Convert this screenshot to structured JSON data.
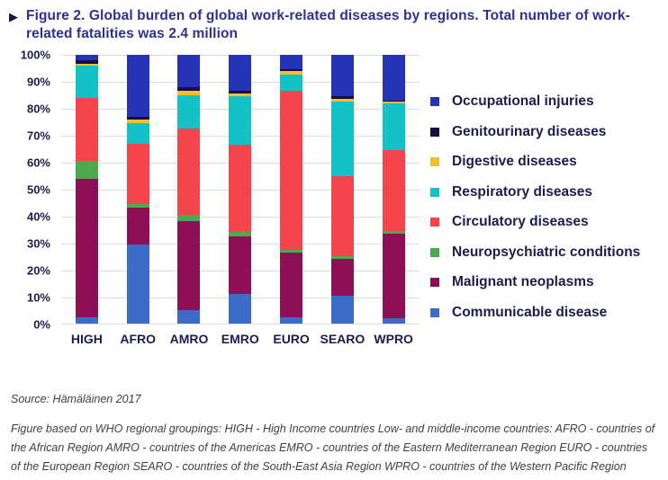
{
  "title": {
    "bullet": "▶",
    "text": "Figure 2. Global burden of global work-related diseases by regions. Total number of work-related fatalities was 2.4 million"
  },
  "chart_data": {
    "type": "bar",
    "subtype": "stacked-percent",
    "title": "Global burden of global work-related diseases by regions",
    "categories": [
      "HIGH",
      "AFRO",
      "AMRO",
      "EMRO",
      "EURO",
      "SEARO",
      "WPRO"
    ],
    "series": [
      {
        "name": "Communicable disease",
        "color": "#3c6cc8",
        "values": [
          2.5,
          29.5,
          5,
          11,
          2.5,
          10.5,
          2
        ]
      },
      {
        "name": "Malignant neoplasms",
        "color": "#8d1056",
        "values": [
          51.5,
          13.5,
          33,
          21.5,
          24,
          13.5,
          31.5
        ]
      },
      {
        "name": "Neuropsychiatric conditions",
        "color": "#4ba94e",
        "values": [
          6.5,
          1.5,
          2.5,
          1.5,
          1,
          1,
          1
        ]
      },
      {
        "name": "Circulatory diseases",
        "color": "#f4444c",
        "values": [
          23.5,
          22.5,
          32,
          32.5,
          59,
          30,
          30
        ]
      },
      {
        "name": "Respiratory diseases",
        "color": "#13c2c4",
        "values": [
          12,
          7.5,
          12.5,
          18,
          6,
          27.5,
          17.5
        ]
      },
      {
        "name": "Digestive diseases",
        "color": "#efc12d",
        "values": [
          0.5,
          1.5,
          1.5,
          1,
          1.5,
          1,
          0.5
        ]
      },
      {
        "name": "Genitourinary diseases",
        "color": "#190d3f",
        "values": [
          1.5,
          1,
          1.5,
          1,
          0.5,
          1,
          0.5
        ]
      },
      {
        "name": "Occupational injuries",
        "color": "#2434b4",
        "values": [
          2,
          23,
          12,
          13.5,
          5.5,
          15.5,
          17
        ]
      }
    ],
    "stack_order": "bottom-to-top",
    "y_axis": {
      "min": 0,
      "max": 100,
      "step": 10,
      "grid": true,
      "ticks": [
        "0%",
        "10%",
        "20%",
        "30%",
        "40%",
        "50%",
        "60%",
        "70%",
        "80%",
        "90%",
        "100%"
      ]
    },
    "legend": {
      "position": "right",
      "order_top_to_bottom": [
        "Occupational injuries",
        "Genitourinary diseases",
        "Digestive diseases",
        "Respiratory diseases",
        "Circulatory diseases",
        "Neuropsychiatric conditions",
        "Malignant neoplasms",
        "Communicable disease"
      ]
    }
  },
  "footer": {
    "source": "Source: Hämäläinen 2017",
    "note": "Figure based on WHO regional groupings: HIGH - High Income countries Low- and middle-income countries: AFRO - countries of the African Region AMRO - countries of the Americas EMRO - countries of the Eastern Mediterranean Region EURO - countries of the European Region SEARO - countries of the South-East Asia Region WPRO - countries of the Western Pacific Region"
  }
}
